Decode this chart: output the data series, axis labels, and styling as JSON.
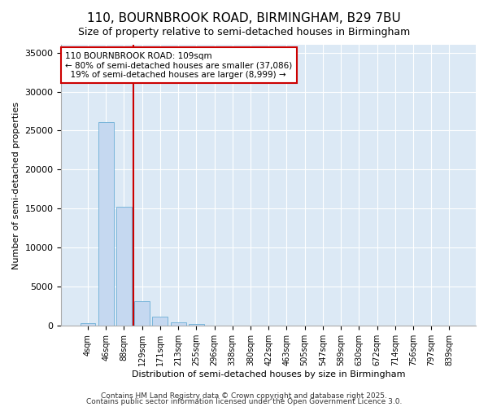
{
  "title1": "110, BOURNBROOK ROAD, BIRMINGHAM, B29 7BU",
  "title2": "Size of property relative to semi-detached houses in Birmingham",
  "xlabel": "Distribution of semi-detached houses by size in Birmingham",
  "ylabel": "Number of semi-detached properties",
  "bar_labels": [
    "4sqm",
    "46sqm",
    "88sqm",
    "129sqm",
    "171sqm",
    "213sqm",
    "255sqm",
    "296sqm",
    "338sqm",
    "380sqm",
    "422sqm",
    "463sqm",
    "505sqm",
    "547sqm",
    "589sqm",
    "630sqm",
    "672sqm",
    "714sqm",
    "756sqm",
    "797sqm",
    "839sqm"
  ],
  "bar_values": [
    350,
    26100,
    15200,
    3200,
    1200,
    450,
    200,
    0,
    0,
    0,
    0,
    0,
    0,
    0,
    0,
    0,
    0,
    0,
    0,
    0,
    0
  ],
  "bar_color": "#c5d8f0",
  "bar_edge_color": "#6baed6",
  "property_line_x": 2.5,
  "property_sqm": 109,
  "pct_smaller": 80,
  "count_smaller": 37086,
  "pct_larger": 19,
  "count_larger": 8999,
  "red_line_color": "#cc0000",
  "annotation_box_color": "#cc0000",
  "ylim": [
    0,
    36000
  ],
  "yticks": [
    0,
    5000,
    10000,
    15000,
    20000,
    25000,
    30000,
    35000
  ],
  "plot_bg_color": "#dce9f5",
  "figure_bg_color": "#ffffff",
  "footer1": "Contains HM Land Registry data © Crown copyright and database right 2025.",
  "footer2": "Contains public sector information licensed under the Open Government Licence 3.0."
}
